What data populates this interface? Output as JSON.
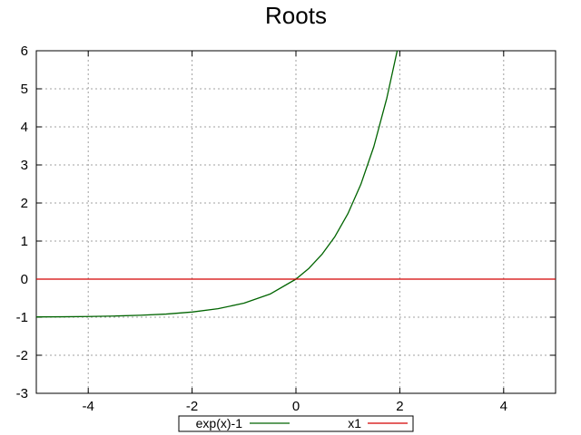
{
  "chart_data": {
    "type": "line",
    "title": "Roots",
    "xlabel": "",
    "ylabel": "",
    "xlim": [
      -5,
      5
    ],
    "ylim": [
      -3,
      6
    ],
    "x_ticks": [
      "-4",
      "-2",
      "0",
      "2",
      "4"
    ],
    "y_ticks": [
      "-3",
      "-2",
      "-1",
      "0",
      "1",
      "2",
      "3",
      "4",
      "5",
      "6"
    ],
    "grid": true,
    "legend_position": "bottom-center",
    "series": [
      {
        "name": "exp(x)-1",
        "color": "#006400",
        "x": [
          -5,
          -4.5,
          -4,
          -3.5,
          -3,
          -2.5,
          -2,
          -1.5,
          -1,
          -0.5,
          0,
          0.25,
          0.5,
          0.75,
          1,
          1.25,
          1.5,
          1.75,
          1.95
        ],
        "y": [
          -0.993,
          -0.989,
          -0.982,
          -0.97,
          -0.95,
          -0.918,
          -0.865,
          -0.777,
          -0.632,
          -0.393,
          0,
          0.284,
          0.649,
          1.117,
          1.718,
          2.49,
          3.482,
          4.755,
          6.0
        ]
      },
      {
        "name": "x1",
        "color": "#d40000",
        "x": [
          -5,
          5
        ],
        "y": [
          0,
          0
        ]
      }
    ]
  }
}
